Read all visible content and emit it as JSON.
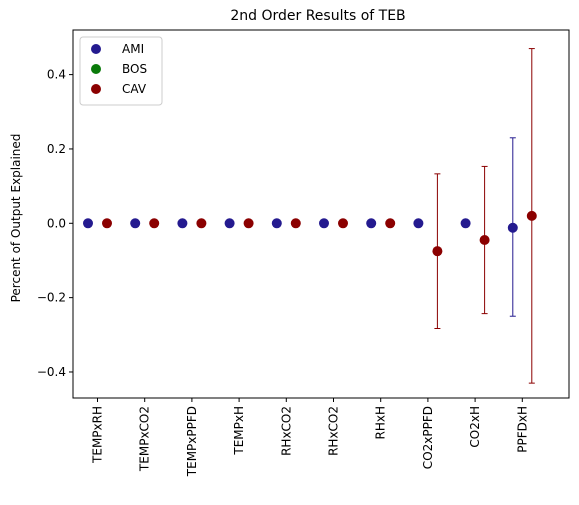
{
  "chart_data": {
    "type": "scatter",
    "title": "2nd Order Results of TEB",
    "xlabel": "",
    "ylabel": "Percent of Output Explained",
    "categories": [
      "TEMPxRH",
      "TEMPxCO2",
      "TEMPxPPFD",
      "TEMPxH",
      "RHxCO2",
      "RHxCO2",
      "RHxH",
      "CO2xPPFD",
      "CO2xH",
      "PPFDxH"
    ],
    "ylim": [
      -0.47,
      0.52
    ],
    "yticks": [
      -0.4,
      -0.2,
      0.0,
      0.2,
      0.4
    ],
    "ytick_labels": [
      "−0.4",
      "−0.2",
      "0.0",
      "0.2",
      "0.4"
    ],
    "grid": false,
    "legend_position": "upper-left",
    "series": [
      {
        "name": "AMI",
        "color": "#241a8f",
        "values": [
          0.0,
          0.0,
          0.0,
          0.0,
          0.0,
          0.0,
          0.0,
          0.0,
          0.0,
          -0.012
        ],
        "err_low": [
          0.0,
          0.0,
          0.0,
          0.0,
          0.0,
          0.0,
          0.0,
          0.0,
          0.0,
          -0.25
        ],
        "err_high": [
          0.0,
          0.0,
          0.0,
          0.0,
          0.0,
          0.0,
          0.0,
          0.0,
          0.0,
          0.23
        ]
      },
      {
        "name": "BOS",
        "color": "#0a7a0a",
        "values": [
          null,
          null,
          null,
          null,
          null,
          null,
          null,
          null,
          null,
          null
        ],
        "err_low": [
          null,
          null,
          null,
          null,
          null,
          null,
          null,
          null,
          null,
          null
        ],
        "err_high": [
          null,
          null,
          null,
          null,
          null,
          null,
          null,
          null,
          null,
          null
        ]
      },
      {
        "name": "CAV",
        "color": "#8b0000",
        "values": [
          0.0,
          0.0,
          0.0,
          0.0,
          0.0,
          0.0,
          0.0,
          -0.075,
          -0.045,
          0.02
        ],
        "err_low": [
          0.0,
          0.0,
          0.0,
          0.0,
          0.0,
          0.0,
          0.0,
          -0.283,
          -0.243,
          -0.43
        ],
        "err_high": [
          0.0,
          0.0,
          0.0,
          0.0,
          0.0,
          0.0,
          0.0,
          0.133,
          0.153,
          0.47
        ]
      }
    ]
  }
}
